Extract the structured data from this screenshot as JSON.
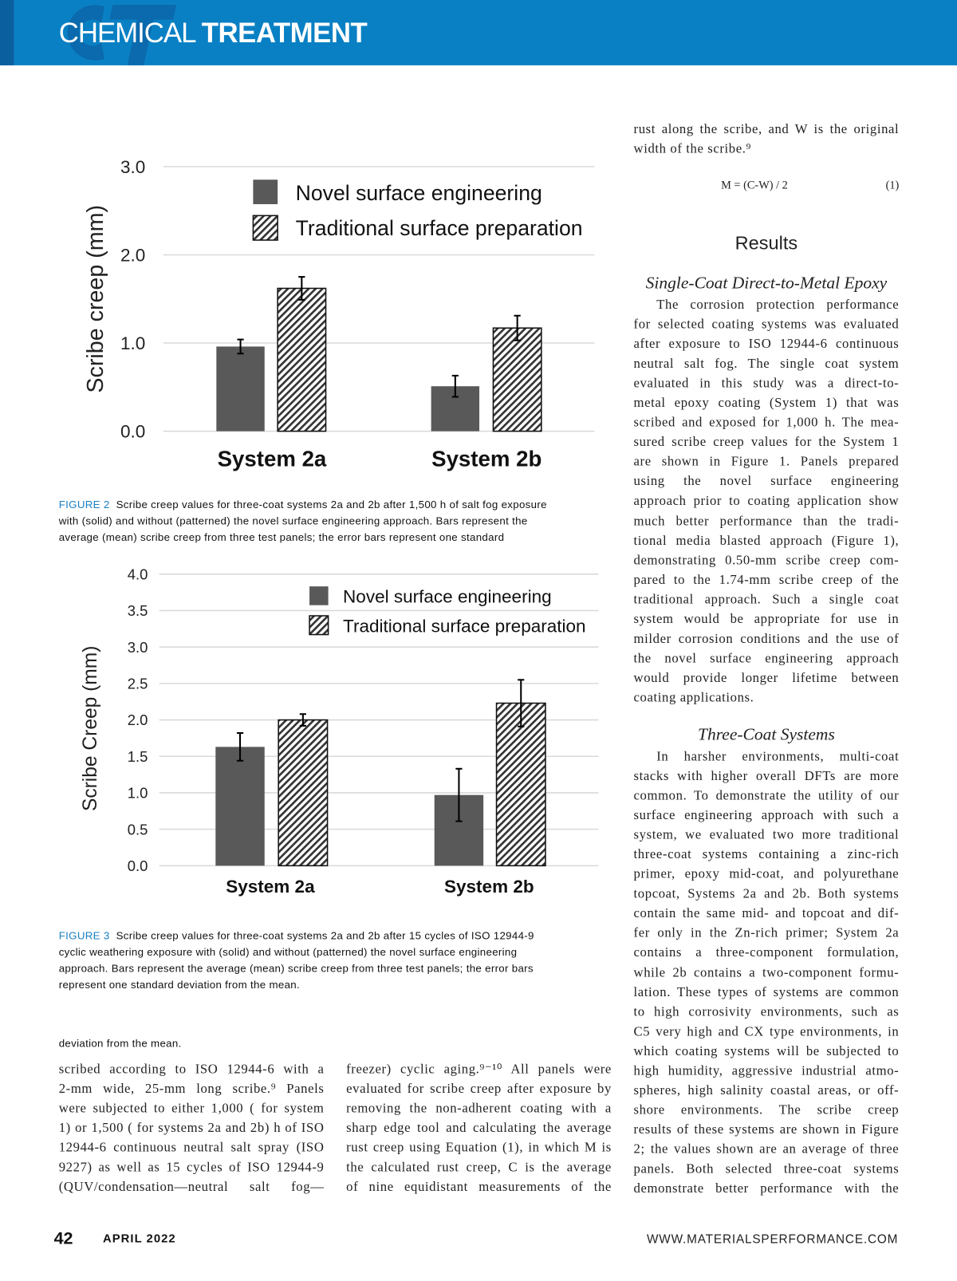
{
  "header": {
    "section_light": "CHEMICAL",
    "section_bold": "TREATMENT",
    "logo_letters": "CT"
  },
  "figure2": {
    "label": "FIGURE 2",
    "caption_lines": [
      "Scribe creep values for three-coat systems 2a and 2b after 1,500 h of salt fog exposure",
      "with (solid) and without (patterned) the novel surface engineering approach. Bars represent the",
      "average (mean) scribe creep from three test panels; the error bars represent one standard"
    ],
    "caption_continuation": "deviation from the mean."
  },
  "figure3": {
    "label": "FIGURE 3",
    "caption_lines": [
      "Scribe creep values for three-coat systems 2a and 2b after 15 cycles of ISO 12944-9",
      "cyclic weathering exposure with (solid) and without (patterned) the novel surface engineering",
      "approach. Bars represent the average (mean) scribe creep from three test panels; the error bars",
      "represent one standard deviation from the mean."
    ]
  },
  "chart_data": [
    {
      "type": "bar",
      "title": "",
      "xlabel": "",
      "ylabel": "Scribe creep (mm)",
      "ylim": [
        0,
        3
      ],
      "yticks": [
        "0.0",
        "1.0",
        "2.0",
        "3.0"
      ],
      "ytick_values": [
        0,
        1,
        2,
        3
      ],
      "grid": true,
      "legend_placement": "top-right",
      "categories": [
        "System 2a",
        "System 2b"
      ],
      "series": [
        {
          "name": "Novel surface engineering",
          "pattern": "solid",
          "values": [
            0.96,
            0.51
          ],
          "errors": [
            0.08,
            0.12
          ]
        },
        {
          "name": "Traditional surface preparation",
          "pattern": "hatched",
          "values": [
            1.62,
            1.17
          ],
          "errors": [
            0.13,
            0.14
          ]
        }
      ]
    },
    {
      "type": "bar",
      "title": "",
      "xlabel": "",
      "ylabel": "Scribe Creep (mm)",
      "ylim": [
        0,
        4
      ],
      "yticks": [
        "0.0",
        "0.5",
        "1.0",
        "1.5",
        "2.0",
        "2.5",
        "3.0",
        "3.5",
        "4.0"
      ],
      "ytick_values": [
        0,
        0.5,
        1,
        1.5,
        2,
        2.5,
        3,
        3.5,
        4
      ],
      "grid": true,
      "legend_placement": "top-right",
      "categories": [
        "System 2a",
        "System 2b"
      ],
      "series": [
        {
          "name": "Novel surface engineering",
          "pattern": "solid",
          "values": [
            1.63,
            0.97
          ],
          "errors": [
            0.19,
            0.36
          ]
        },
        {
          "name": "Traditional surface preparation",
          "pattern": "hatched",
          "values": [
            2.0,
            2.23
          ],
          "errors": [
            0.08,
            0.32
          ]
        }
      ]
    }
  ],
  "body": {
    "col1": [
      "scribed according to ISO 12944-6 with a",
      "2-mm wide, 25-mm long scribe.⁹ Panels",
      "were subjected to either 1,000 ( for system",
      "1) or 1,500 ( for systems 2a and 2b) h of ISO",
      "12944-6 continuous neutral salt spray (ISO",
      "9227) as well as 15 cycles of ISO 12944-9",
      "(QUV/condensation—neutral salt fog—"
    ],
    "col2": [
      "freezer) cyclic aging.⁹⁻¹⁰ All panels were",
      "evaluated for scribe creep after exposure by",
      "removing the non-adherent coating with a",
      "sharp edge tool and calculating the average",
      "rust creep using Equation (1), in which M is",
      "the calculated rust creep, C is the average",
      "of nine equidistant measurements of the"
    ],
    "col3_intro": [
      "rust along the scribe, and W is the original",
      "width of the scribe.⁹"
    ],
    "equation": "M = (C-W) / 2",
    "equation_number": "(1)",
    "results_heading": "Results",
    "subhead1": "Single-Coat Direct-to-Metal Epoxy",
    "para1": [
      "The corrosion protection performance",
      "for selected coating systems was evaluated",
      "after exposure to ISO 12944-6 continuous",
      "neutral salt fog. The single coat system",
      "evaluated in this study was a direct-to-",
      "metal epoxy coating (System 1) that was",
      "scribed and exposed for 1,000 h. The mea-",
      "sured scribe creep values for the System 1",
      "are shown in Figure 1. Panels prepared",
      "using the novel surface engineering",
      "approach prior to coating application show",
      "much better performance than the tradi-",
      "tional media blasted approach (Figure 1),",
      "demonstrating 0.50-mm scribe creep com-",
      "pared to the 1.74-mm scribe creep of the",
      "traditional approach. Such a single coat",
      "system would be appropriate for use in",
      "milder corrosion conditions and the use of",
      "the novel surface engineering approach",
      "would provide longer lifetime between",
      "coating applications."
    ],
    "subhead2": "Three-Coat Systems",
    "para2": [
      "In harsher environments, multi-coat",
      "stacks with higher overall DFTs are more",
      "common. To demonstrate the utility of our",
      "surface engineering approach with such a",
      "system, we evaluated two more traditional",
      "three-coat systems containing a zinc-rich",
      "primer, epoxy mid-coat, and polyurethane",
      "topcoat, Systems 2a and 2b. Both systems",
      "contain the same mid- and topcoat and dif-",
      "fer only in the Zn-rich primer; System 2a",
      "contains a three-component formulation,",
      "while 2b contains a two-component formu-",
      "lation. These types of systems are common",
      "to high corrosivity environments, such as",
      "C5 very high and CX type environments, in",
      "which coating systems will be subjected to",
      "high humidity, aggressive industrial atmo-",
      "spheres, high salinity coastal areas, or off-",
      "shore environments. The scribe creep",
      "results of these systems are shown in Figure",
      "2; the values shown are an average of three",
      "panels. Both selected three-coat systems",
      "demonstrate better performance with the"
    ]
  },
  "footer": {
    "page_number": "42",
    "issue": "APRIL 2022",
    "website": "WWW.MATERIALSPERFORMANCE.COM"
  },
  "colors": {
    "header_blue": "#0a80c4",
    "caption_label": "#1a7fc2",
    "bar_solid": "#595959"
  }
}
